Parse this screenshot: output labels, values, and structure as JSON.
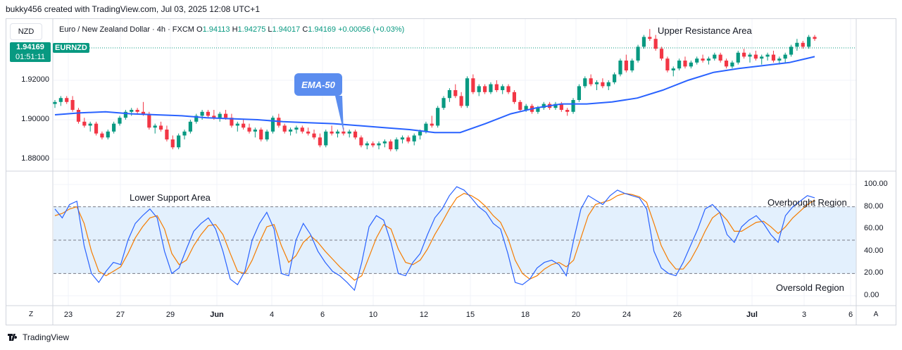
{
  "header": {
    "attribution": "bukky456 created with TradingView.com, Jul 03, 2025 12:08 UTC+1"
  },
  "toolbar": {
    "symbol_button": "NZD"
  },
  "legend": {
    "title": "Euro / New Zealand Dollar · 4h · FXCM",
    "open_label": "O",
    "open": "1.94113",
    "high_label": "H",
    "high": "1.94275",
    "low_label": "L",
    "low": "1.94017",
    "close_label": "C",
    "close": "1.94169",
    "change": "+0.00056 (+0.03%)"
  },
  "price_tag": {
    "price": "1.94169",
    "countdown": "01:51:11",
    "ticker": "EURNZD",
    "color": "#089981"
  },
  "annotations": {
    "ema_label": "EMA-50",
    "upper_resistance": "Upper Resistance Area",
    "lower_support": "Lower Support Area",
    "overbought": "Overbought Region",
    "oversold": "Oversold Region"
  },
  "colors": {
    "up": "#089981",
    "down": "#f23645",
    "ema": "#2962ff",
    "k_line": "#2962ff",
    "d_line": "#f57c00",
    "band": "#e3f0fd"
  },
  "chart_data": [
    {
      "type": "candlestick",
      "price_ticks": [
        "1.92000",
        "1.90000",
        "1.88000"
      ],
      "ylim": [
        1.875,
        1.95
      ],
      "x_labels": [
        "23",
        "27",
        "29",
        "Jun",
        "4",
        "6",
        "10",
        "12",
        "15",
        "18",
        "20",
        "24",
        "26",
        "Jul",
        "3",
        "6"
      ],
      "candles_approx": [
        [
          1.908,
          1.91,
          1.906,
          1.909
        ],
        [
          1.909,
          1.912,
          1.907,
          1.911
        ],
        [
          1.911,
          1.912,
          1.908,
          1.909
        ],
        [
          1.91,
          1.912,
          1.904,
          1.905
        ],
        [
          1.905,
          1.906,
          1.898,
          1.899
        ],
        [
          1.899,
          1.901,
          1.896,
          1.897
        ],
        [
          1.897,
          1.899,
          1.894,
          1.898
        ],
        [
          1.898,
          1.899,
          1.892,
          1.893
        ],
        [
          1.893,
          1.894,
          1.89,
          1.891
        ],
        [
          1.891,
          1.895,
          1.89,
          1.894
        ],
        [
          1.894,
          1.899,
          1.893,
          1.898
        ],
        [
          1.898,
          1.902,
          1.897,
          1.901
        ],
        [
          1.901,
          1.905,
          1.9,
          1.904
        ],
        [
          1.904,
          1.906,
          1.902,
          1.905
        ],
        [
          1.905,
          1.906,
          1.903,
          1.904
        ],
        [
          1.904,
          1.909,
          1.902,
          1.903
        ],
        [
          1.903,
          1.904,
          1.895,
          1.896
        ],
        [
          1.896,
          1.898,
          1.893,
          1.897
        ],
        [
          1.897,
          1.899,
          1.894,
          1.895
        ],
        [
          1.895,
          1.897,
          1.889,
          1.89
        ],
        [
          1.89,
          1.892,
          1.885,
          1.886
        ],
        [
          1.886,
          1.893,
          1.885,
          1.892
        ],
        [
          1.892,
          1.895,
          1.89,
          1.894
        ],
        [
          1.894,
          1.9,
          1.893,
          1.899
        ],
        [
          1.899,
          1.903,
          1.898,
          1.902
        ],
        [
          1.902,
          1.905,
          1.9,
          1.904
        ],
        [
          1.904,
          1.905,
          1.901,
          1.902
        ],
        [
          1.902,
          1.905,
          1.9,
          1.901
        ],
        [
          1.901,
          1.904,
          1.899,
          1.903
        ],
        [
          1.903,
          1.905,
          1.9,
          1.901
        ],
        [
          1.901,
          1.903,
          1.896,
          1.897
        ],
        [
          1.897,
          1.899,
          1.894,
          1.898
        ],
        [
          1.898,
          1.9,
          1.895,
          1.896
        ],
        [
          1.896,
          1.898,
          1.893,
          1.894
        ],
        [
          1.894,
          1.896,
          1.891,
          1.895
        ],
        [
          1.895,
          1.896,
          1.889,
          1.89
        ],
        [
          1.89,
          1.895,
          1.889,
          1.894
        ],
        [
          1.894,
          1.902,
          1.893,
          1.901
        ],
        [
          1.901,
          1.903,
          1.896,
          1.897
        ],
        [
          1.897,
          1.898,
          1.893,
          1.894
        ],
        [
          1.894,
          1.896,
          1.892,
          1.895
        ],
        [
          1.895,
          1.897,
          1.893,
          1.896
        ],
        [
          1.896,
          1.897,
          1.893,
          1.894
        ],
        [
          1.894,
          1.896,
          1.892,
          1.893
        ],
        [
          1.893,
          1.895,
          1.89,
          1.891
        ],
        [
          1.891,
          1.893,
          1.886,
          1.887
        ],
        [
          1.887,
          1.895,
          1.886,
          1.894
        ],
        [
          1.894,
          1.897,
          1.892,
          1.893
        ],
        [
          1.893,
          1.895,
          1.891,
          1.894
        ],
        [
          1.894,
          1.896,
          1.892,
          1.893
        ],
        [
          1.893,
          1.895,
          1.891,
          1.894
        ],
        [
          1.894,
          1.895,
          1.89,
          1.891
        ],
        [
          1.891,
          1.892,
          1.886,
          1.887
        ],
        [
          1.887,
          1.889,
          1.885,
          1.888
        ],
        [
          1.888,
          1.889,
          1.886,
          1.887
        ],
        [
          1.887,
          1.889,
          1.885,
          1.888
        ],
        [
          1.888,
          1.89,
          1.886,
          1.889
        ],
        [
          1.889,
          1.89,
          1.884,
          1.885
        ],
        [
          1.885,
          1.891,
          1.884,
          1.89
        ],
        [
          1.89,
          1.892,
          1.888,
          1.891
        ],
        [
          1.891,
          1.892,
          1.888,
          1.889
        ],
        [
          1.889,
          1.893,
          1.887,
          1.892
        ],
        [
          1.892,
          1.895,
          1.89,
          1.894
        ],
        [
          1.894,
          1.899,
          1.893,
          1.898
        ],
        [
          1.898,
          1.902,
          1.896,
          1.897
        ],
        [
          1.897,
          1.907,
          1.896,
          1.906
        ],
        [
          1.906,
          1.912,
          1.905,
          1.911
        ],
        [
          1.911,
          1.916,
          1.909,
          1.915
        ],
        [
          1.915,
          1.918,
          1.911,
          1.912
        ],
        [
          1.912,
          1.914,
          1.906,
          1.907
        ],
        [
          1.907,
          1.922,
          1.906,
          1.921
        ],
        [
          1.921,
          1.923,
          1.913,
          1.914
        ],
        [
          1.914,
          1.918,
          1.912,
          1.917
        ],
        [
          1.917,
          1.918,
          1.913,
          1.914
        ],
        [
          1.914,
          1.919,
          1.913,
          1.918
        ],
        [
          1.918,
          1.92,
          1.914,
          1.915
        ],
        [
          1.915,
          1.918,
          1.913,
          1.917
        ],
        [
          1.917,
          1.918,
          1.913,
          1.914
        ],
        [
          1.914,
          1.915,
          1.908,
          1.909
        ],
        [
          1.909,
          1.91,
          1.904,
          1.905
        ],
        [
          1.905,
          1.908,
          1.904,
          1.907
        ],
        [
          1.907,
          1.908,
          1.903,
          1.904
        ],
        [
          1.904,
          1.907,
          1.903,
          1.906
        ],
        [
          1.906,
          1.909,
          1.905,
          1.908
        ],
        [
          1.908,
          1.909,
          1.905,
          1.906
        ],
        [
          1.906,
          1.909,
          1.905,
          1.908
        ],
        [
          1.908,
          1.909,
          1.904,
          1.905
        ],
        [
          1.905,
          1.906,
          1.902,
          1.904
        ],
        [
          1.904,
          1.911,
          1.903,
          1.91
        ],
        [
          1.91,
          1.918,
          1.909,
          1.917
        ],
        [
          1.917,
          1.922,
          1.916,
          1.921
        ],
        [
          1.921,
          1.923,
          1.917,
          1.918
        ],
        [
          1.918,
          1.92,
          1.915,
          1.919
        ],
        [
          1.919,
          1.921,
          1.916,
          1.917
        ],
        [
          1.917,
          1.92,
          1.915,
          1.919
        ],
        [
          1.919,
          1.924,
          1.918,
          1.923
        ],
        [
          1.923,
          1.931,
          1.922,
          1.93
        ],
        [
          1.93,
          1.933,
          1.924,
          1.925
        ],
        [
          1.925,
          1.931,
          1.924,
          1.93
        ],
        [
          1.93,
          1.938,
          1.929,
          1.937
        ],
        [
          1.937,
          1.943,
          1.936,
          1.942
        ],
        [
          1.942,
          1.946,
          1.94,
          1.941
        ],
        [
          1.941,
          1.943,
          1.935,
          1.936
        ],
        [
          1.936,
          1.937,
          1.93,
          1.931
        ],
        [
          1.931,
          1.932,
          1.924,
          1.925
        ],
        [
          1.925,
          1.927,
          1.922,
          1.926
        ],
        [
          1.926,
          1.931,
          1.925,
          1.93
        ],
        [
          1.93,
          1.932,
          1.926,
          1.927
        ],
        [
          1.927,
          1.93,
          1.926,
          1.929
        ],
        [
          1.929,
          1.932,
          1.928,
          1.931
        ],
        [
          1.931,
          1.933,
          1.929,
          1.93
        ],
        [
          1.93,
          1.932,
          1.928,
          1.931
        ],
        [
          1.931,
          1.934,
          1.93,
          1.933
        ],
        [
          1.933,
          1.934,
          1.929,
          1.93
        ],
        [
          1.93,
          1.931,
          1.926,
          1.927
        ],
        [
          1.927,
          1.93,
          1.926,
          1.929
        ],
        [
          1.929,
          1.935,
          1.928,
          1.934
        ],
        [
          1.934,
          1.936,
          1.931,
          1.932
        ],
        [
          1.932,
          1.934,
          1.929,
          1.933
        ],
        [
          1.933,
          1.935,
          1.93,
          1.931
        ],
        [
          1.931,
          1.933,
          1.928,
          1.932
        ],
        [
          1.932,
          1.934,
          1.93,
          1.933
        ],
        [
          1.933,
          1.935,
          1.929,
          1.93
        ],
        [
          1.93,
          1.932,
          1.928,
          1.931
        ],
        [
          1.931,
          1.934,
          1.929,
          1.933
        ],
        [
          1.933,
          1.938,
          1.932,
          1.937
        ],
        [
          1.937,
          1.941,
          1.935,
          1.939
        ],
        [
          1.939,
          1.94,
          1.936,
          1.937
        ],
        [
          1.937,
          1.943,
          1.936,
          1.942
        ],
        [
          1.942,
          1.943,
          1.94,
          1.941
        ]
      ],
      "ema50_approx": [
        1.9025,
        1.9035,
        1.904,
        1.903,
        1.9025,
        1.902,
        1.901,
        1.9005,
        1.9,
        1.899,
        1.8985,
        1.898,
        1.897,
        1.896,
        1.895,
        1.8935,
        1.8935,
        1.898,
        1.903,
        1.906,
        1.908,
        1.908,
        1.909,
        1.911,
        1.915,
        1.92,
        1.924,
        1.926,
        1.9275,
        1.929,
        1.932
      ]
    },
    {
      "type": "line",
      "indicator": "oscillator",
      "ylim": [
        0,
        100
      ],
      "y_ticks": [
        "100.00",
        "80.00",
        "60.00",
        "40.00",
        "20.00",
        "0.00"
      ],
      "band_levels": [
        80,
        50,
        20
      ],
      "series": [
        {
          "values": [
            78,
            70,
            82,
            85,
            45,
            20,
            12,
            22,
            30,
            28,
            50,
            65,
            72,
            78,
            70,
            40,
            20,
            25,
            42,
            58,
            65,
            70,
            60,
            40,
            15,
            10,
            22,
            50,
            65,
            75,
            60,
            20,
            18,
            50,
            65,
            55,
            40,
            30,
            22,
            18,
            12,
            5,
            30,
            62,
            72,
            68,
            48,
            20,
            18,
            30,
            38,
            55,
            70,
            78,
            90,
            98,
            95,
            88,
            80,
            75,
            65,
            60,
            38,
            12,
            10,
            15,
            25,
            30,
            32,
            28,
            18,
            50,
            78,
            90,
            86,
            82,
            90,
            95,
            92,
            90,
            88,
            78,
            40,
            25,
            20,
            18,
            30,
            45,
            60,
            78,
            82,
            75,
            55,
            48,
            62,
            68,
            72,
            65,
            55,
            48,
            72,
            80,
            85,
            90,
            88
          ]
        },
        {
          "values": [
            72,
            74,
            78,
            80,
            65,
            40,
            22,
            18,
            22,
            26,
            38,
            52,
            62,
            70,
            72,
            60,
            38,
            28,
            32,
            45,
            55,
            63,
            64,
            55,
            38,
            22,
            20,
            32,
            48,
            62,
            64,
            45,
            30,
            36,
            48,
            54,
            48,
            40,
            33,
            26,
            20,
            14,
            18,
            35,
            52,
            64,
            60,
            42,
            30,
            28,
            32,
            42,
            55,
            66,
            78,
            88,
            92,
            90,
            86,
            80,
            72,
            66,
            52,
            32,
            20,
            15,
            18,
            24,
            28,
            30,
            26,
            32,
            52,
            72,
            82,
            84,
            86,
            90,
            92,
            91,
            89,
            84,
            65,
            45,
            32,
            24,
            24,
            32,
            44,
            58,
            70,
            75,
            68,
            58,
            58,
            62,
            66,
            67,
            62,
            56,
            62,
            70,
            76,
            82,
            86
          ]
        }
      ]
    }
  ]
}
